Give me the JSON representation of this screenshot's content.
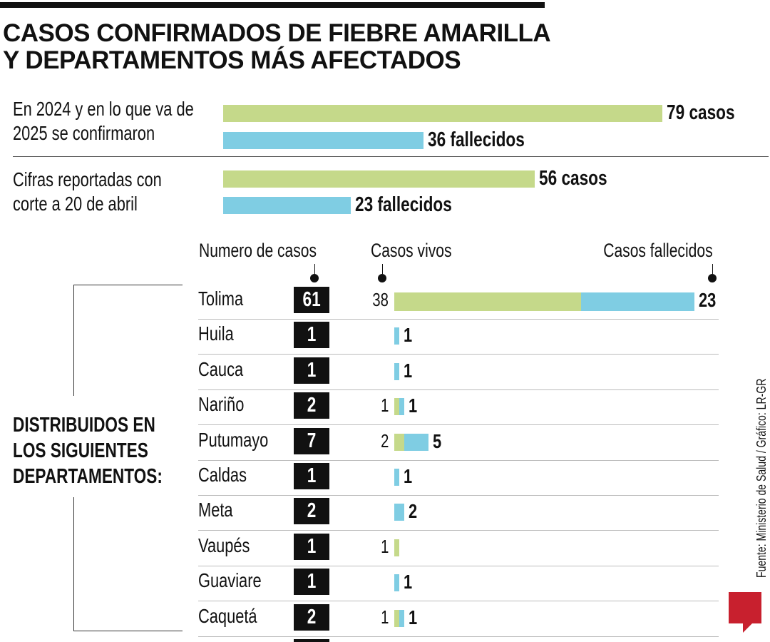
{
  "header": {
    "title_line1": "CASOS CONFIRMADOS DE FIEBRE AMARILLA",
    "title_line2": "Y DEPARTAMENTOS MÁS AFECTADOS"
  },
  "colors": {
    "casos": "#c5d98a",
    "fallecidos": "#7fcde3",
    "logo": "#c8202e"
  },
  "chart_data": [
    {
      "type": "bar",
      "orientation": "horizontal",
      "groups": [
        {
          "label_line1": "En 2024 y en lo que va de",
          "label_line2": "2025 se confirmaron",
          "bars": [
            {
              "value": 79,
              "label": "79 casos",
              "color": "#c5d98a"
            },
            {
              "value": 36,
              "label": "36 fallecidos",
              "color": "#7fcde3"
            }
          ]
        },
        {
          "label_line1": "Cifras reportadas con",
          "label_line2": "corte a 20 de abril",
          "bars": [
            {
              "value": 56,
              "label": "56 casos",
              "color": "#c5d98a"
            },
            {
              "value": 23,
              "label": "23 fallecidos",
              "color": "#7fcde3"
            }
          ]
        }
      ]
    },
    {
      "type": "bar",
      "stacked": true,
      "orientation": "horizontal",
      "side_label_lines": [
        "DISTRIBUIDOS EN",
        "LOS SIGUIENTES",
        "DEPARTAMENTOS:"
      ],
      "column_headers": {
        "total": "Numero de casos",
        "vivos": "Casos vivos",
        "fallecidos": "Casos fallecidos"
      },
      "rows": [
        {
          "name": "Tolima",
          "total": 61,
          "vivos": 38,
          "fallecidos": 23
        },
        {
          "name": "Huila",
          "total": 1,
          "vivos": 0,
          "fallecidos": 1
        },
        {
          "name": "Cauca",
          "total": 1,
          "vivos": 0,
          "fallecidos": 1
        },
        {
          "name": "Nariño",
          "total": 2,
          "vivos": 1,
          "fallecidos": 1
        },
        {
          "name": "Putumayo",
          "total": 7,
          "vivos": 2,
          "fallecidos": 5
        },
        {
          "name": "Caldas",
          "total": 1,
          "vivos": 0,
          "fallecidos": 1
        },
        {
          "name": "Meta",
          "total": 2,
          "vivos": 0,
          "fallecidos": 2
        },
        {
          "name": "Vaupés",
          "total": 1,
          "vivos": 1,
          "fallecidos": 0
        },
        {
          "name": "Guaviare",
          "total": 1,
          "vivos": 0,
          "fallecidos": 1
        },
        {
          "name": "Caquetá",
          "total": 2,
          "vivos": 1,
          "fallecidos": 1
        }
      ]
    }
  ],
  "footer": {
    "source": "Fuente: Ministerio de Salud  / Gráfico: LR-GR",
    "logo_text": "LR"
  }
}
